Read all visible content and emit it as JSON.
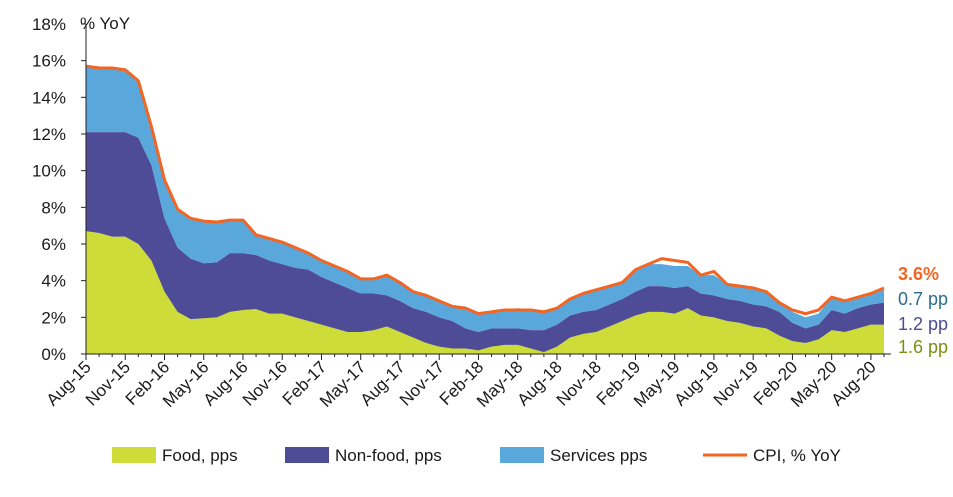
{
  "chart_data": {
    "type": "area",
    "stacked": true,
    "unit_label": "% YoY",
    "title": "",
    "xlabel": "",
    "ylabel": "",
    "ylim": [
      0,
      18
    ],
    "y_ticks": [
      "0%",
      "2%",
      "4%",
      "6%",
      "8%",
      "10%",
      "12%",
      "14%",
      "16%",
      "18%"
    ],
    "x_tick_labels": [
      "Aug-15",
      "Nov-15",
      "Feb-16",
      "May-16",
      "Aug-16",
      "Nov-16",
      "Feb-17",
      "May-17",
      "Aug-17",
      "Nov-17",
      "Feb-18",
      "May-18",
      "Aug-18",
      "Nov-18",
      "Feb-19",
      "May-19",
      "Aug-19",
      "Nov-19",
      "Feb-20",
      "May-20",
      "Aug-20"
    ],
    "grid": false,
    "legend_position": "bottom",
    "series": [
      {
        "name": "Food, pps",
        "color": "#cddc39",
        "values": [
          6.7,
          6.6,
          6.4,
          6.4,
          6.0,
          5.1,
          3.4,
          2.3,
          1.9,
          1.95,
          2.0,
          2.3,
          2.4,
          2.45,
          2.2,
          2.2,
          2.0,
          1.8,
          1.6,
          1.4,
          1.2,
          1.2,
          1.3,
          1.5,
          1.2,
          0.9,
          0.6,
          0.4,
          0.3,
          0.3,
          0.2,
          0.4,
          0.5,
          0.5,
          0.3,
          0.1,
          0.4,
          0.9,
          1.1,
          1.2,
          1.5,
          1.8,
          2.1,
          2.3,
          2.3,
          2.2,
          2.5,
          2.1,
          2.0,
          1.8,
          1.7,
          1.5,
          1.4,
          1.0,
          0.7,
          0.6,
          0.8,
          1.3,
          1.2,
          1.4,
          1.6,
          1.6
        ]
      },
      {
        "name": "Non-food, pps",
        "color": "#4e4b97",
        "values": [
          5.4,
          5.5,
          5.7,
          5.7,
          5.8,
          5.2,
          4.0,
          3.5,
          3.3,
          3.0,
          3.0,
          3.2,
          3.1,
          2.95,
          2.9,
          2.7,
          2.7,
          2.8,
          2.6,
          2.5,
          2.4,
          2.1,
          2.0,
          1.7,
          1.7,
          1.6,
          1.7,
          1.6,
          1.5,
          1.1,
          1.0,
          1.0,
          0.9,
          0.9,
          1.0,
          1.2,
          1.2,
          1.2,
          1.2,
          1.2,
          1.2,
          1.2,
          1.3,
          1.4,
          1.4,
          1.4,
          1.2,
          1.2,
          1.2,
          1.2,
          1.2,
          1.2,
          1.2,
          1.3,
          1.0,
          0.8,
          0.8,
          1.1,
          1.0,
          1.1,
          1.1,
          1.2
        ]
      },
      {
        "name": "Services pps",
        "color": "#5aa7dc",
        "values": [
          3.6,
          3.5,
          3.5,
          3.4,
          3.1,
          2.1,
          2.1,
          2.1,
          2.2,
          2.3,
          2.2,
          1.8,
          1.8,
          1.1,
          1.2,
          1.2,
          1.1,
          0.9,
          0.9,
          0.9,
          0.9,
          0.8,
          0.8,
          1.1,
          1.0,
          0.9,
          0.9,
          0.9,
          0.8,
          1.2,
          1.0,
          0.9,
          1.0,
          1.1,
          1.1,
          1.0,
          0.9,
          0.9,
          1.0,
          1.1,
          1.0,
          0.9,
          1.2,
          1.2,
          1.2,
          1.2,
          1.1,
          1.0,
          1.1,
          0.8,
          0.8,
          0.9,
          0.8,
          0.6,
          0.6,
          0.6,
          0.6,
          0.7,
          0.7,
          0.6,
          0.6,
          0.7
        ]
      },
      {
        "name": "CPI, % YoY",
        "color": "#f26522",
        "type": "line",
        "values": [
          15.7,
          15.6,
          15.6,
          15.5,
          14.9,
          12.4,
          9.5,
          7.9,
          7.4,
          7.25,
          7.2,
          7.3,
          7.3,
          6.5,
          6.3,
          6.1,
          5.8,
          5.5,
          5.1,
          4.8,
          4.5,
          4.1,
          4.1,
          4.3,
          3.9,
          3.4,
          3.2,
          2.9,
          2.6,
          2.5,
          2.2,
          2.3,
          2.4,
          2.4,
          2.4,
          2.3,
          2.5,
          3.0,
          3.3,
          3.5,
          3.7,
          3.9,
          4.6,
          4.9,
          5.2,
          5.1,
          5.0,
          4.3,
          4.5,
          3.8,
          3.7,
          3.6,
          3.4,
          2.8,
          2.4,
          2.2,
          2.4,
          3.1,
          2.9,
          3.1,
          3.3,
          3.6
        ]
      }
    ],
    "end_labels": [
      {
        "text": "3.6%",
        "color": "#f26522"
      },
      {
        "text": "0.7 pp",
        "color": "#2c6c8e"
      },
      {
        "text": "1.2 pp",
        "color": "#4e4b97"
      },
      {
        "text": "1.6 pp",
        "color": "#7b8f10"
      }
    ]
  }
}
